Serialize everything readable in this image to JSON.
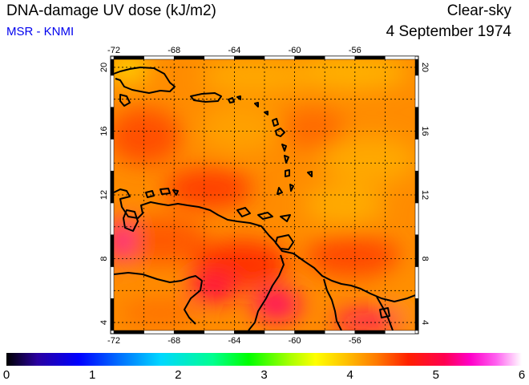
{
  "header": {
    "title": "DNA-damage UV dose (kJ/m2)",
    "credit": "MSR - KNMI",
    "sky": "Clear-sky",
    "date": "4 September 1974"
  },
  "map": {
    "lon_labels": [
      "-72",
      "-68",
      "-64",
      "-60",
      "-56"
    ],
    "lat_labels": [
      "20",
      "16",
      "12",
      "8",
      "4"
    ],
    "lon_range": [
      -72,
      -52
    ],
    "lat_range": [
      3.5,
      20.5
    ]
  },
  "colorbar": {
    "labels": [
      "0",
      "1",
      "2",
      "3",
      "4",
      "5",
      "6"
    ],
    "min": 0,
    "max": 6
  },
  "colors": {
    "field_base": "#ff8a00",
    "field_high": "#ff2a00",
    "field_low": "#ffb000",
    "credit_blue": "#0000ee"
  }
}
